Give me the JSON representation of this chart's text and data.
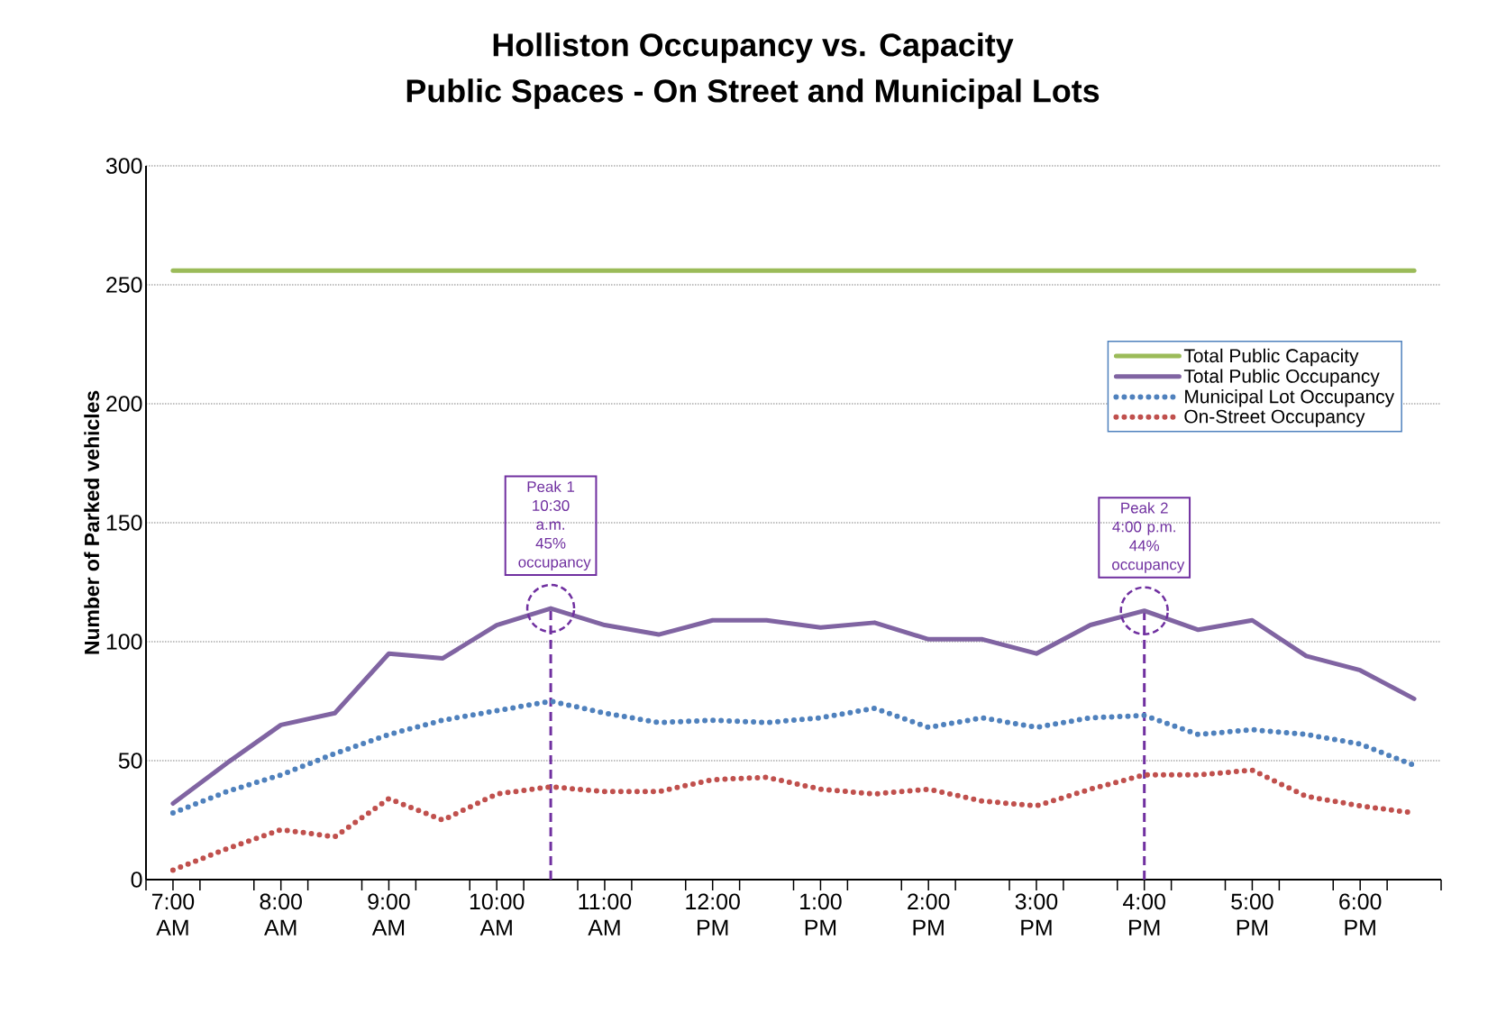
{
  "chart_data": {
    "type": "line",
    "title": "Holliston Occupancy vs. Capacity",
    "subtitle": "Public Spaces - On Street and Municipal Lots",
    "ylabel": "Number of Parked vehicles",
    "x": [
      7,
      7.5,
      8,
      8.5,
      9,
      9.5,
      10,
      10.5,
      11,
      11.5,
      12,
      12.5,
      13,
      13.5,
      14,
      14.5,
      15,
      15.5,
      16,
      16.5,
      17,
      17.5,
      18,
      18.5
    ],
    "series": [
      {
        "name": "Total Public Capacity",
        "color": "#9bbb59",
        "line_style": "solid",
        "values": [
          256,
          256,
          256,
          256,
          256,
          256,
          256,
          256,
          256,
          256,
          256,
          256,
          256,
          256,
          256,
          256,
          256,
          256,
          256,
          256,
          256,
          256,
          256,
          256
        ]
      },
      {
        "name": "Total Public Occupancy",
        "color": "#8064a2",
        "line_style": "solid",
        "values": [
          32,
          49,
          65,
          70,
          95,
          93,
          107,
          114,
          107,
          103,
          109,
          109,
          106,
          108,
          101,
          101,
          95,
          107,
          113,
          105,
          109,
          94,
          88,
          76
        ]
      },
      {
        "name": "Municipal Lot Occupancy",
        "color": "#4f81bd",
        "line_style": "dotted",
        "values": [
          28,
          37,
          44,
          53,
          61,
          67,
          71,
          75,
          70,
          66,
          67,
          66,
          68,
          72,
          64,
          68,
          64,
          68,
          69,
          61,
          63,
          61,
          57,
          48
        ]
      },
      {
        "name": "On-Street Occupancy",
        "color": "#c0504d",
        "line_style": "dotted",
        "values": [
          4,
          13,
          21,
          18,
          34,
          25,
          36,
          39,
          37,
          37,
          42,
          43,
          38,
          36,
          38,
          33,
          31,
          38,
          44,
          44,
          46,
          35,
          31,
          28
        ]
      }
    ],
    "xlim": [
      6.75,
      18.75
    ],
    "xticks": [
      {
        "value": 6.75,
        "label": null
      },
      {
        "value": 7,
        "label": "7:00 AM"
      },
      {
        "value": 7.25,
        "label": null
      },
      {
        "value": 7.75,
        "label": null
      },
      {
        "value": 8,
        "label": "8:00 AM"
      },
      {
        "value": 8.25,
        "label": null
      },
      {
        "value": 8.75,
        "label": null
      },
      {
        "value": 9,
        "label": "9:00 AM"
      },
      {
        "value": 9.25,
        "label": null
      },
      {
        "value": 9.75,
        "label": null
      },
      {
        "value": 10,
        "label": "10:00 AM"
      },
      {
        "value": 10.25,
        "label": null
      },
      {
        "value": 10.75,
        "label": null
      },
      {
        "value": 11,
        "label": "11:00 AM"
      },
      {
        "value": 11.25,
        "label": null
      },
      {
        "value": 11.75,
        "label": null
      },
      {
        "value": 12,
        "label": "12:00 PM"
      },
      {
        "value": 12.25,
        "label": null
      },
      {
        "value": 12.75,
        "label": null
      },
      {
        "value": 13,
        "label": "1:00 PM"
      },
      {
        "value": 13.25,
        "label": null
      },
      {
        "value": 13.75,
        "label": null
      },
      {
        "value": 14,
        "label": "2:00 PM"
      },
      {
        "value": 14.25,
        "label": null
      },
      {
        "value": 14.75,
        "label": null
      },
      {
        "value": 15,
        "label": "3:00 PM"
      },
      {
        "value": 15.25,
        "label": null
      },
      {
        "value": 15.75,
        "label": null
      },
      {
        "value": 16,
        "label": "4:00 PM"
      },
      {
        "value": 16.25,
        "label": null
      },
      {
        "value": 16.75,
        "label": null
      },
      {
        "value": 17,
        "label": "5:00 PM"
      },
      {
        "value": 17.25,
        "label": null
      },
      {
        "value": 17.75,
        "label": null
      },
      {
        "value": 18,
        "label": "6:00 PM"
      },
      {
        "value": 18.25,
        "label": null
      },
      {
        "value": 18.75,
        "label": null
      }
    ],
    "ylim": [
      0,
      300
    ],
    "yticks": [
      0,
      50,
      100,
      150,
      200,
      250,
      300
    ],
    "grid": "y",
    "legend": "top right",
    "marker": "none",
    "ref_lines": [
      {
        "axis": "x",
        "value": 10.5,
        "color": "#7030a0",
        "line_style": "dashed"
      },
      {
        "axis": "x",
        "value": 16,
        "color": "#7030a0",
        "line_style": "dashed"
      }
    ],
    "annotations": [
      {
        "text": "Peak 1 10:30 a.m. 45% occupancy",
        "x": 10.5,
        "y": 114
      },
      {
        "text": "Peak 2 4:00 p.m. 44% occupancy",
        "x": 16,
        "y": 113
      }
    ]
  }
}
